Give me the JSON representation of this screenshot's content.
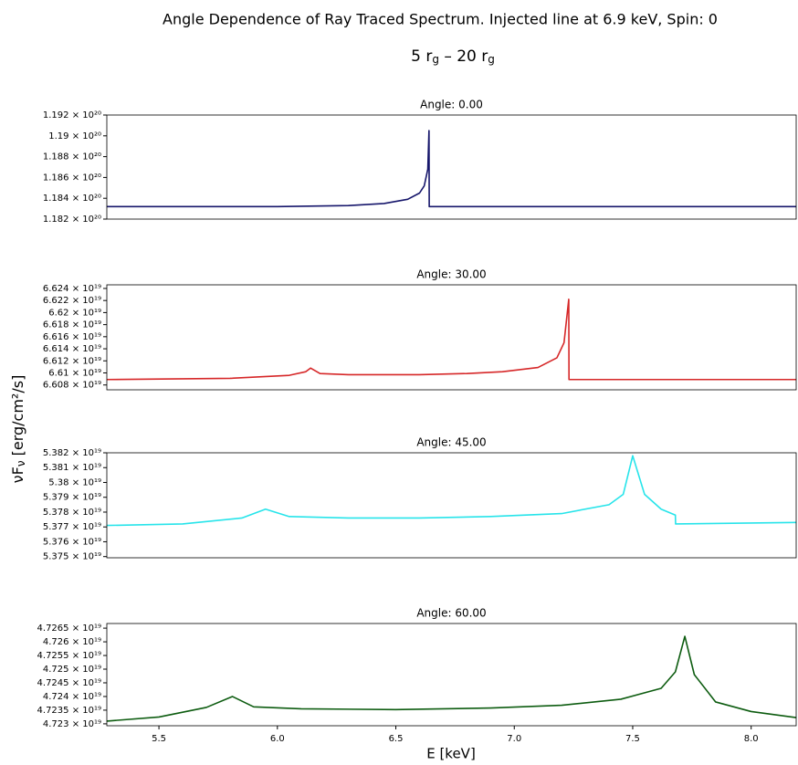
{
  "title": "Angle Dependence of Ray Traced Spectrum. Injected line at 6.9 keV, Spin: 0",
  "subtitle": [
    "5 r",
    "g",
    " – 20 r",
    "g"
  ],
  "ylabel": [
    "νF",
    "ν",
    " [erg/cm²/s]"
  ],
  "xlabel": "E [keV]",
  "chart_data": [
    {
      "type": "line",
      "title": "Angle: 0.00",
      "color": "#16166b",
      "x": [
        5.28,
        6.0,
        6.3,
        6.45,
        6.55,
        6.6,
        6.62,
        6.635,
        6.64,
        6.641,
        8.19
      ],
      "values": [
        1.1832e+20,
        1.1832e+20,
        1.1833e+20,
        1.1835e+20,
        1.1839e+20,
        1.1845e+20,
        1.1852e+20,
        1.1868e+20,
        1.1905e+20,
        1.1832e+20,
        1.1832e+20
      ],
      "xlim": [
        5.28,
        8.19
      ],
      "ylim": [
        1.182e+20,
        1.192e+20
      ],
      "yticks": [
        {
          "value": 1.182e+20,
          "label": "1.182 × 10²⁰"
        },
        {
          "value": 1.184e+20,
          "label": "1.184 × 10²⁰"
        },
        {
          "value": 1.186e+20,
          "label": "1.186 × 10²⁰"
        },
        {
          "value": 1.188e+20,
          "label": "1.188 × 10²⁰"
        },
        {
          "value": 1.19e+20,
          "label": "1.19 × 10²⁰"
        },
        {
          "value": 1.192e+20,
          "label": "1.192 × 10²⁰"
        }
      ]
    },
    {
      "type": "line",
      "title": "Angle: 30.00",
      "color": "#d62728",
      "x": [
        5.28,
        5.8,
        6.05,
        6.12,
        6.14,
        6.18,
        6.3,
        6.6,
        6.8,
        6.95,
        7.1,
        7.18,
        7.21,
        7.23,
        7.231,
        8.19
      ],
      "values": [
        6.6089e+19,
        6.6091e+19,
        6.6096e+19,
        6.6102e+19,
        6.6108e+19,
        6.6099e+19,
        6.6097e+19,
        6.6097e+19,
        6.6099e+19,
        6.6102e+19,
        6.6109e+19,
        6.6125e+19,
        6.615e+19,
        6.6222e+19,
        6.6089e+19,
        6.6089e+19
      ],
      "xlim": [
        5.28,
        8.19
      ],
      "ylim": [
        6.6072e+19,
        6.6246e+19
      ],
      "yticks": [
        {
          "value": 6.608e+19,
          "label": "6.608 × 10¹⁹"
        },
        {
          "value": 6.61e+19,
          "label": "6.61 × 10¹⁹"
        },
        {
          "value": 6.612e+19,
          "label": "6.612 × 10¹⁹"
        },
        {
          "value": 6.614e+19,
          "label": "6.614 × 10¹⁹"
        },
        {
          "value": 6.616e+19,
          "label": "6.616 × 10¹⁹"
        },
        {
          "value": 6.618e+19,
          "label": "6.618 × 10¹⁹"
        },
        {
          "value": 6.62e+19,
          "label": "6.62 × 10¹⁹"
        },
        {
          "value": 6.622e+19,
          "label": "6.622 × 10¹⁹"
        },
        {
          "value": 6.624e+19,
          "label": "6.624 × 10¹⁹"
        }
      ]
    },
    {
      "type": "line",
      "title": "Angle: 45.00",
      "color": "#27e4ea",
      "x": [
        5.28,
        5.6,
        5.85,
        5.95,
        6.05,
        6.3,
        6.6,
        6.9,
        7.2,
        7.4,
        7.46,
        7.5,
        7.55,
        7.62,
        7.68,
        7.681,
        8.19
      ],
      "values": [
        5.3771e+19,
        5.3772e+19,
        5.3776e+19,
        5.3782e+19,
        5.3777e+19,
        5.3776e+19,
        5.3776e+19,
        5.3777e+19,
        5.3779e+19,
        5.3785e+19,
        5.3792e+19,
        5.3818e+19,
        5.3792e+19,
        5.3782e+19,
        5.3778e+19,
        5.3772e+19,
        5.3773e+19
      ],
      "xlim": [
        5.28,
        8.19
      ],
      "ylim": [
        5.37492e+19,
        5.382e+19
      ],
      "yticks": [
        {
          "value": 5.375e+19,
          "label": "5.375 × 10¹⁹"
        },
        {
          "value": 5.376e+19,
          "label": "5.376 × 10¹⁹"
        },
        {
          "value": 5.377e+19,
          "label": "5.377 × 10¹⁹"
        },
        {
          "value": 5.378e+19,
          "label": "5.378 × 10¹⁹"
        },
        {
          "value": 5.379e+19,
          "label": "5.379 × 10¹⁹"
        },
        {
          "value": 5.38e+19,
          "label": "5.38 × 10¹⁹"
        },
        {
          "value": 5.381e+19,
          "label": "5.381 × 10¹⁹"
        },
        {
          "value": 5.382e+19,
          "label": "5.382 × 10¹⁹"
        }
      ]
    },
    {
      "type": "line",
      "title": "Angle: 60.00",
      "color": "#0d5c10",
      "x": [
        5.28,
        5.5,
        5.7,
        5.81,
        5.9,
        6.1,
        6.5,
        6.9,
        7.2,
        7.45,
        7.62,
        7.68,
        7.72,
        7.76,
        7.85,
        8.0,
        8.19
      ],
      "values": [
        4.7231e+19,
        4.72325e+19,
        4.7236e+19,
        4.724e+19,
        4.72362e+19,
        4.72355e+19,
        4.72352e+19,
        4.72358e+19,
        4.72368e+19,
        4.7239e+19,
        4.7243e+19,
        4.7249e+19,
        4.7262e+19,
        4.7248e+19,
        4.7238e+19,
        4.72345e+19,
        4.72323e+19
      ],
      "xlim": [
        5.28,
        8.19
      ],
      "ylim": [
        4.72293e+19,
        4.72667e+19
      ],
      "xticks": [
        5.5,
        {
          "value": 6,
          "label": "6.0"
        },
        6.5,
        {
          "value": 7,
          "label": "7.0"
        },
        7.5,
        {
          "value": 8,
          "label": "8.0"
        }
      ],
      "yticks": [
        {
          "value": 4.723e+19,
          "label": "4.723 × 10¹⁹"
        },
        {
          "value": 4.7235e+19,
          "label": "4.7235 × 10¹⁹"
        },
        {
          "value": 4.724e+19,
          "label": "4.724 × 10¹⁹"
        },
        {
          "value": 4.7245e+19,
          "label": "4.7245 × 10¹⁹"
        },
        {
          "value": 4.725e+19,
          "label": "4.725 × 10¹⁹"
        },
        {
          "value": 4.7255e+19,
          "label": "4.7255 × 10¹⁹"
        },
        {
          "value": 4.726e+19,
          "label": "4.726 × 10¹⁹"
        },
        {
          "value": 4.7265e+19,
          "label": "4.7265 × 10¹⁹"
        }
      ]
    }
  ]
}
